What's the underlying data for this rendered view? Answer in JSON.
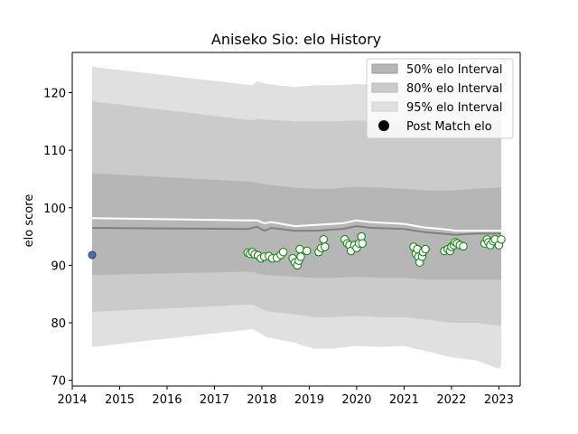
{
  "chart_data": {
    "type": "line",
    "title": "Aniseko Sio: elo History",
    "ylabel": "elo score",
    "xlabel": "",
    "xlim": [
      2014.0,
      2023.45
    ],
    "ylim": [
      69,
      127
    ],
    "xticks": [
      2014,
      2015,
      2016,
      2017,
      2018,
      2019,
      2020,
      2021,
      2022,
      2023
    ],
    "yticks": [
      70,
      80,
      90,
      100,
      110,
      120
    ],
    "legend": [
      "50% elo Interval",
      "80% elo Interval",
      "95% elo Interval",
      "Post Match elo"
    ],
    "legend_position": "top-right",
    "colors": {
      "band95": "#e0e0e0",
      "band80": "#cbcbcb",
      "band50": "#b6b6b6",
      "median_line": "#808080",
      "mean_line": "#ffffff",
      "marker_edge": "#008000",
      "first_marker_fill": "#4f6fa8",
      "first_marker_edge": "#2b3f6b"
    },
    "bands": {
      "x": [
        2014.42,
        2017.8,
        2017.9,
        2018.1,
        2018.7,
        2019.1,
        2019.5,
        2020.0,
        2020.5,
        2021.0,
        2021.5,
        2022.0,
        2022.5,
        2023.0,
        2023.05
      ],
      "lo95": [
        75.8,
        78.9,
        78.5,
        77.5,
        76.5,
        75.5,
        75.5,
        76.0,
        75.8,
        76.0,
        75.0,
        74.0,
        73.5,
        72.0,
        72.5
      ],
      "lo80": [
        81.9,
        83.2,
        82.8,
        82.0,
        81.5,
        81.0,
        81.0,
        81.2,
        81.0,
        81.0,
        80.5,
        80.0,
        80.0,
        79.5,
        79.5
      ],
      "lo50": [
        88.3,
        88.9,
        88.5,
        88.3,
        88.0,
        87.8,
        87.8,
        88.0,
        87.8,
        87.8,
        87.5,
        87.5,
        87.5,
        87.5,
        87.5
      ],
      "hi50": [
        106.0,
        104.5,
        104.3,
        104.0,
        103.5,
        103.3,
        103.3,
        103.7,
        103.5,
        103.3,
        103.0,
        103.0,
        103.3,
        103.5,
        103.5
      ],
      "hi80": [
        118.5,
        115.2,
        115.5,
        115.3,
        115.0,
        115.0,
        115.0,
        115.2,
        115.0,
        115.0,
        115.0,
        115.0,
        115.0,
        115.0,
        115.0
      ],
      "hi95": [
        124.5,
        121.3,
        122.0,
        121.5,
        121.0,
        121.3,
        121.3,
        121.5,
        121.3,
        121.3,
        121.3,
        121.3,
        121.3,
        121.5,
        121.5
      ]
    },
    "median": {
      "x": [
        2014.42,
        2017.7,
        2017.9,
        2018.05,
        2018.2,
        2018.7,
        2019.1,
        2019.7,
        2020.0,
        2020.3,
        2021.0,
        2021.4,
        2021.8,
        2022.1,
        2022.5,
        2023.05
      ],
      "y": [
        96.5,
        96.3,
        96.7,
        96.0,
        96.5,
        96.0,
        96.0,
        96.3,
        96.8,
        96.5,
        96.3,
        95.8,
        95.5,
        95.3,
        95.5,
        95.5
      ]
    },
    "mean": {
      "x": [
        2014.42,
        2017.7,
        2017.9,
        2018.05,
        2018.2,
        2018.7,
        2019.1,
        2019.7,
        2020.0,
        2020.3,
        2021.0,
        2021.4,
        2021.8,
        2022.1,
        2022.5,
        2023.05
      ],
      "y": [
        98.2,
        97.8,
        97.8,
        97.3,
        97.5,
        96.8,
        97.0,
        97.3,
        97.8,
        97.5,
        97.2,
        96.6,
        96.3,
        96.0,
        96.0,
        96.0
      ]
    },
    "first_match": {
      "x": 2014.42,
      "y": 91.8
    },
    "matches": [
      [
        2017.7,
        92.2
      ],
      [
        2017.75,
        92.0
      ],
      [
        2017.8,
        92.3
      ],
      [
        2017.85,
        91.9
      ],
      [
        2017.92,
        91.7
      ],
      [
        2017.98,
        91.2
      ],
      [
        2018.05,
        91.5
      ],
      [
        2018.15,
        91.6
      ],
      [
        2018.22,
        91.2
      ],
      [
        2018.32,
        91.3
      ],
      [
        2018.4,
        91.8
      ],
      [
        2018.45,
        92.3
      ],
      [
        2018.65,
        91.2
      ],
      [
        2018.7,
        90.5
      ],
      [
        2018.75,
        90.0
      ],
      [
        2018.78,
        90.8
      ],
      [
        2018.82,
        91.5
      ],
      [
        2018.8,
        92.8
      ],
      [
        2018.95,
        92.5
      ],
      [
        2019.2,
        92.3
      ],
      [
        2019.25,
        93.0
      ],
      [
        2019.3,
        94.5
      ],
      [
        2019.33,
        93.2
      ],
      [
        2019.75,
        94.5
      ],
      [
        2019.8,
        93.8
      ],
      [
        2019.85,
        93.5
      ],
      [
        2019.88,
        92.5
      ],
      [
        2019.95,
        93.5
      ],
      [
        2020.0,
        93.0
      ],
      [
        2020.05,
        93.8
      ],
      [
        2020.1,
        95.0
      ],
      [
        2020.12,
        93.8
      ],
      [
        2021.2,
        93.2
      ],
      [
        2021.25,
        92.0
      ],
      [
        2021.28,
        92.8
      ],
      [
        2021.3,
        91.5
      ],
      [
        2021.33,
        90.5
      ],
      [
        2021.38,
        91.5
      ],
      [
        2021.4,
        92.3
      ],
      [
        2021.45,
        92.8
      ],
      [
        2021.85,
        92.5
      ],
      [
        2021.92,
        92.8
      ],
      [
        2021.97,
        92.5
      ],
      [
        2022.0,
        93.2
      ],
      [
        2022.05,
        93.5
      ],
      [
        2022.08,
        94.0
      ],
      [
        2022.12,
        93.8
      ],
      [
        2022.18,
        93.5
      ],
      [
        2022.25,
        93.3
      ],
      [
        2022.7,
        93.8
      ],
      [
        2022.75,
        94.5
      ],
      [
        2022.78,
        94.0
      ],
      [
        2022.82,
        93.5
      ],
      [
        2022.88,
        94.2
      ],
      [
        2022.92,
        94.5
      ],
      [
        2023.0,
        93.5
      ],
      [
        2023.05,
        94.5
      ]
    ]
  }
}
